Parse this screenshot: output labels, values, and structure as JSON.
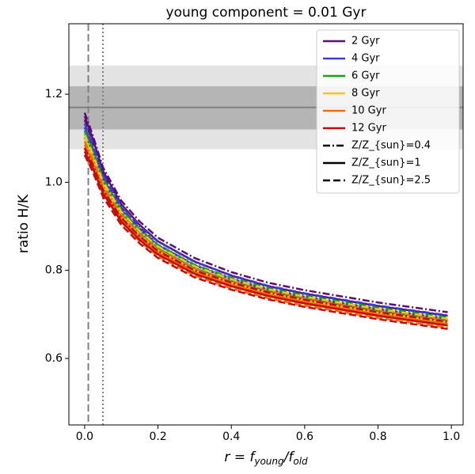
{
  "chart_data": {
    "type": "line",
    "title": "young component = 0.01 Gyr",
    "xlabel": "r = f_young/f_old",
    "ylabel": "ratio H/K",
    "xlim": [
      -0.043,
      1.032
    ],
    "ylim": [
      0.449,
      1.36
    ],
    "xticks": [
      {
        "value": 0,
        "label": "0.0"
      },
      0.2,
      0.4,
      0.6,
      0.8,
      {
        "value": 1,
        "label": "1.0"
      }
    ],
    "yticks": [
      0.6,
      0.8,
      {
        "value": 1,
        "label": "1.0"
      },
      1.2
    ],
    "bands": [
      {
        "ylim": [
          1.075,
          1.265
        ],
        "color": "#dcdcdc"
      },
      {
        "ylim": [
          1.12,
          1.218
        ],
        "color": "#a9a9a9"
      }
    ],
    "hline": {
      "y": 1.17,
      "color": "#808080"
    },
    "vlines": [
      {
        "x": 0.01,
        "style": "dashed",
        "color": "#808080"
      },
      {
        "x": 0.05,
        "style": "dotted",
        "color": "#808080"
      }
    ],
    "legend": "upper right",
    "metallicities": [
      {
        "name": "Z/Z_{sun}=0.4",
        "style": "dashdot"
      },
      {
        "name": "Z/Z_{sun}=1",
        "style": "solid"
      },
      {
        "name": "Z/Z_{sun}=2.5",
        "style": "dashed"
      }
    ],
    "x": [
      0,
      0.02,
      0.05,
      0.1,
      0.15,
      0.2,
      0.3,
      0.4,
      0.5,
      0.6,
      0.8,
      0.99
    ],
    "series": [
      {
        "name": "2 Gyr",
        "color": "#5b0f75",
        "lines": [
          {
            "values": [
              1.158,
              1.112,
              1.034,
              0.958,
              0.911,
              0.874,
              0.828,
              0.796,
              0.772,
              0.755,
              0.727,
              0.705
            ]
          },
          {
            "values": [
              1.15,
              1.104,
              1.026,
              0.95,
              0.903,
              0.866,
              0.82,
              0.788,
              0.764,
              0.747,
              0.719,
              0.697
            ]
          },
          {
            "values": [
              1.142,
              1.096,
              1.018,
              0.942,
              0.895,
              0.858,
              0.812,
              0.78,
              0.756,
              0.739,
              0.711,
              0.689
            ]
          }
        ]
      },
      {
        "name": "4 Gyr",
        "color": "#3b3bdc",
        "lines": [
          {
            "values": [
              1.133,
              1.091,
              1.018,
              0.946,
              0.9,
              0.865,
              0.819,
              0.789,
              0.765,
              0.748,
              0.72,
              0.698
            ]
          },
          {
            "values": [
              1.125,
              1.083,
              1.01,
              0.938,
              0.892,
              0.857,
              0.811,
              0.781,
              0.757,
              0.74,
              0.712,
              0.69
            ]
          },
          {
            "values": [
              1.117,
              1.075,
              1.002,
              0.93,
              0.884,
              0.849,
              0.803,
              0.773,
              0.749,
              0.732,
              0.704,
              0.682
            ]
          }
        ]
      },
      {
        "name": "6 Gyr",
        "color": "#18a01c",
        "lines": [
          {
            "values": [
              1.118,
              1.078,
              1.008,
              0.938,
              0.893,
              0.858,
              0.813,
              0.783,
              0.76,
              0.743,
              0.715,
              0.693
            ]
          },
          {
            "values": [
              1.11,
              1.07,
              1.0,
              0.93,
              0.885,
              0.85,
              0.805,
              0.775,
              0.752,
              0.735,
              0.707,
              0.685
            ]
          },
          {
            "values": [
              1.102,
              1.062,
              0.992,
              0.922,
              0.877,
              0.842,
              0.797,
              0.767,
              0.744,
              0.727,
              0.699,
              0.677
            ]
          }
        ]
      },
      {
        "name": "8 Gyr",
        "color": "#f5c518",
        "lines": [
          {
            "values": [
              1.108,
              1.069,
              1.002,
              0.933,
              0.889,
              0.854,
              0.809,
              0.78,
              0.757,
              0.74,
              0.712,
              0.69
            ]
          },
          {
            "values": [
              1.1,
              1.061,
              0.994,
              0.925,
              0.881,
              0.846,
              0.801,
              0.772,
              0.749,
              0.732,
              0.704,
              0.682
            ]
          },
          {
            "values": [
              1.092,
              1.053,
              0.986,
              0.917,
              0.873,
              0.838,
              0.793,
              0.764,
              0.741,
              0.724,
              0.696,
              0.674
            ]
          }
        ]
      },
      {
        "name": "10 Gyr",
        "color": "#f06a10",
        "lines": [
          {
            "values": [
              1.093,
              1.057,
              0.992,
              0.926,
              0.882,
              0.848,
              0.804,
              0.775,
              0.753,
              0.736,
              0.708,
              0.686
            ]
          },
          {
            "values": [
              1.085,
              1.049,
              0.984,
              0.918,
              0.874,
              0.84,
              0.796,
              0.767,
              0.745,
              0.728,
              0.7,
              0.678
            ]
          },
          {
            "values": [
              1.077,
              1.041,
              0.976,
              0.91,
              0.866,
              0.832,
              0.788,
              0.759,
              0.737,
              0.72,
              0.692,
              0.67
            ]
          }
        ]
      },
      {
        "name": "12 Gyr",
        "color": "#c40c0c",
        "lines": [
          {
            "values": [
              1.078,
              1.044,
              0.983,
              0.919,
              0.877,
              0.844,
              0.8,
              0.772,
              0.75,
              0.733,
              0.705,
              0.683
            ]
          },
          {
            "values": [
              1.07,
              1.036,
              0.975,
              0.911,
              0.869,
              0.836,
              0.792,
              0.764,
              0.742,
              0.725,
              0.697,
              0.675
            ]
          },
          {
            "values": [
              1.062,
              1.028,
              0.967,
              0.903,
              0.861,
              0.828,
              0.784,
              0.756,
              0.734,
              0.717,
              0.689,
              0.667
            ]
          }
        ]
      }
    ]
  }
}
